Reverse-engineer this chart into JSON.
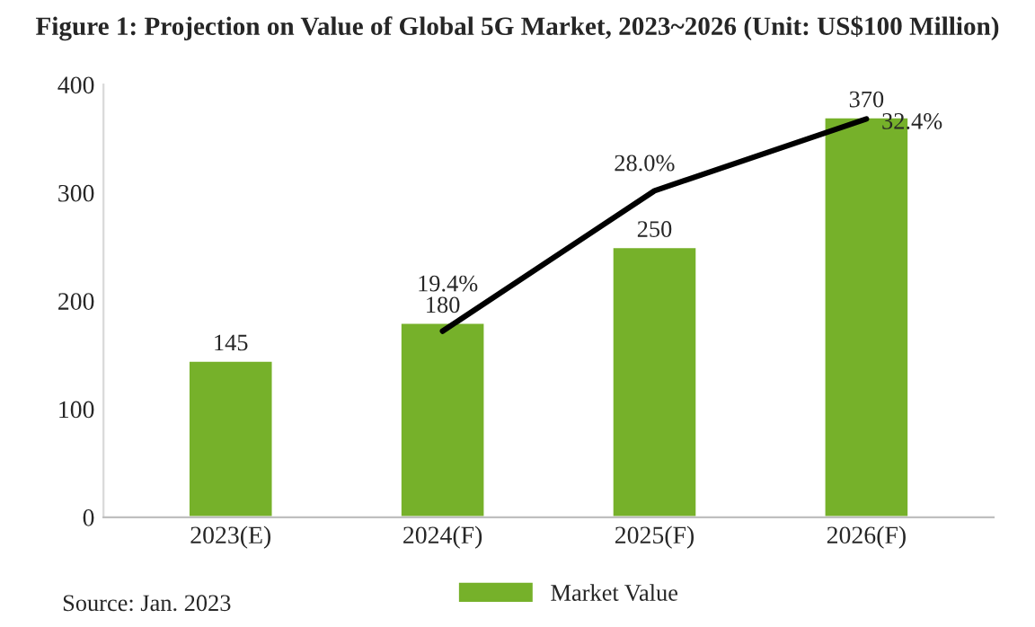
{
  "chart_data": {
    "type": "bar",
    "title": "Figure 1: Projection on Value of Global 5G Market, 2023~2026 (Unit: US$100 Million)",
    "categories": [
      "2023(E)",
      "2024(F)",
      "2025(F)",
      "2026(F)"
    ],
    "series": [
      {
        "name": "Market Value",
        "color": "#76b12a",
        "values": [
          145,
          180,
          250,
          370
        ]
      },
      {
        "type": "line",
        "axis": "y2",
        "color": "#000000",
        "values": [
          null,
          19.4,
          28.0,
          32.4
        ],
        "value_labels": [
          null,
          "19.4%",
          "28.0%",
          "32.4%"
        ]
      }
    ],
    "ylim": [
      0,
      400
    ],
    "yticks": [
      0,
      100,
      200,
      300,
      400
    ],
    "y2lim": [
      8,
      34.5
    ],
    "data_labels": true,
    "grid": false,
    "legend": "bottom",
    "marker": "none",
    "line_style": "solid",
    "annotations": [
      "Source: Jan. 2023"
    ]
  }
}
